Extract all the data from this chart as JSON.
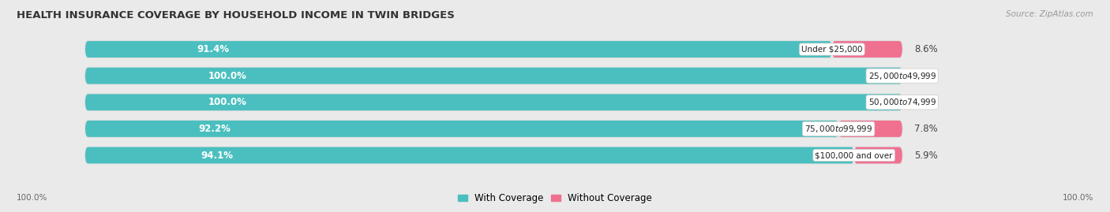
{
  "title": "HEALTH INSURANCE COVERAGE BY HOUSEHOLD INCOME IN TWIN BRIDGES",
  "source": "Source: ZipAtlas.com",
  "categories": [
    "Under $25,000",
    "$25,000 to $49,999",
    "$50,000 to $74,999",
    "$75,000 to $99,999",
    "$100,000 and over"
  ],
  "with_coverage": [
    91.4,
    100.0,
    100.0,
    92.2,
    94.1
  ],
  "without_coverage": [
    8.6,
    0.0,
    0.0,
    7.8,
    5.9
  ],
  "color_with": "#4bbfbf",
  "color_without": "#f07090",
  "background_color": "#eaeaea",
  "bar_bg_color": "#f5f5f5",
  "bar_height": 0.62,
  "label_fontsize": 8.5,
  "title_fontsize": 9.5,
  "legend_fontsize": 8.5,
  "axis_label_left": "100.0%",
  "axis_label_right": "100.0%",
  "total_bar_width": 100.0,
  "xlim_left": -5,
  "xlim_right": 120
}
